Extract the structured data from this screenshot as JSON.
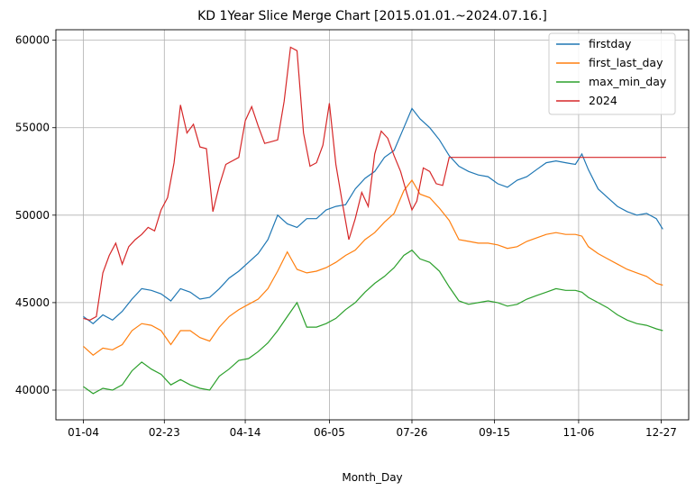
{
  "chart_data": {
    "type": "line",
    "title": "KD 1Year Slice Merge Chart [2015.01.01.~2024.07.16.]",
    "xlabel": "Month_Day",
    "ylabel": "",
    "x_ticks": [
      {
        "label": "01-04",
        "x": 0
      },
      {
        "label": "02-23",
        "x": 50
      },
      {
        "label": "04-14",
        "x": 100
      },
      {
        "label": "06-05",
        "x": 152
      },
      {
        "label": "07-26",
        "x": 203
      },
      {
        "label": "09-15",
        "x": 254
      },
      {
        "label": "11-06",
        "x": 306
      },
      {
        "label": "12-27",
        "x": 357
      }
    ],
    "xlim": [
      -17,
      374
    ],
    "ylim": [
      38300,
      60600
    ],
    "y_ticks": [
      40000,
      45000,
      50000,
      55000,
      60000
    ],
    "grid": true,
    "legend_position": "top-right",
    "series": [
      {
        "name": "firstday",
        "color": "#1f77b4",
        "points": [
          [
            0,
            44200
          ],
          [
            6,
            43800
          ],
          [
            12,
            44300
          ],
          [
            18,
            44000
          ],
          [
            24,
            44500
          ],
          [
            30,
            45200
          ],
          [
            36,
            45800
          ],
          [
            42,
            45700
          ],
          [
            48,
            45500
          ],
          [
            54,
            45100
          ],
          [
            60,
            45800
          ],
          [
            66,
            45600
          ],
          [
            72,
            45200
          ],
          [
            78,
            45300
          ],
          [
            84,
            45800
          ],
          [
            90,
            46400
          ],
          [
            96,
            46800
          ],
          [
            102,
            47300
          ],
          [
            108,
            47800
          ],
          [
            114,
            48600
          ],
          [
            120,
            50000
          ],
          [
            126,
            49500
          ],
          [
            132,
            49300
          ],
          [
            138,
            49800
          ],
          [
            144,
            49800
          ],
          [
            150,
            50300
          ],
          [
            156,
            50500
          ],
          [
            162,
            50600
          ],
          [
            168,
            51500
          ],
          [
            174,
            52100
          ],
          [
            180,
            52500
          ],
          [
            186,
            53300
          ],
          [
            192,
            53700
          ],
          [
            198,
            55000
          ],
          [
            203,
            56100
          ],
          [
            208,
            55500
          ],
          [
            214,
            55000
          ],
          [
            220,
            54300
          ],
          [
            226,
            53400
          ],
          [
            232,
            52800
          ],
          [
            238,
            52500
          ],
          [
            244,
            52300
          ],
          [
            250,
            52200
          ],
          [
            256,
            51800
          ],
          [
            262,
            51600
          ],
          [
            268,
            52000
          ],
          [
            274,
            52200
          ],
          [
            280,
            52600
          ],
          [
            286,
            53000
          ],
          [
            292,
            53100
          ],
          [
            298,
            53000
          ],
          [
            304,
            52900
          ],
          [
            308,
            53500
          ],
          [
            312,
            52600
          ],
          [
            318,
            51500
          ],
          [
            324,
            51000
          ],
          [
            330,
            50500
          ],
          [
            336,
            50200
          ],
          [
            342,
            50000
          ],
          [
            348,
            50100
          ],
          [
            354,
            49800
          ],
          [
            358,
            49200
          ]
        ]
      },
      {
        "name": "first_last_day",
        "color": "#ff7f0e",
        "points": [
          [
            0,
            42500
          ],
          [
            6,
            42000
          ],
          [
            12,
            42400
          ],
          [
            18,
            42300
          ],
          [
            24,
            42600
          ],
          [
            30,
            43400
          ],
          [
            36,
            43800
          ],
          [
            42,
            43700
          ],
          [
            48,
            43400
          ],
          [
            54,
            42600
          ],
          [
            60,
            43400
          ],
          [
            66,
            43400
          ],
          [
            72,
            43000
          ],
          [
            78,
            42800
          ],
          [
            84,
            43600
          ],
          [
            90,
            44200
          ],
          [
            96,
            44600
          ],
          [
            102,
            44900
          ],
          [
            108,
            45200
          ],
          [
            114,
            45800
          ],
          [
            120,
            46800
          ],
          [
            126,
            47900
          ],
          [
            132,
            46900
          ],
          [
            138,
            46700
          ],
          [
            144,
            46800
          ],
          [
            150,
            47000
          ],
          [
            156,
            47300
          ],
          [
            162,
            47700
          ],
          [
            168,
            48000
          ],
          [
            174,
            48600
          ],
          [
            180,
            49000
          ],
          [
            186,
            49600
          ],
          [
            192,
            50100
          ],
          [
            198,
            51400
          ],
          [
            203,
            52000
          ],
          [
            208,
            51200
          ],
          [
            214,
            51000
          ],
          [
            220,
            50400
          ],
          [
            226,
            49700
          ],
          [
            232,
            48600
          ],
          [
            238,
            48500
          ],
          [
            244,
            48400
          ],
          [
            250,
            48400
          ],
          [
            256,
            48300
          ],
          [
            262,
            48100
          ],
          [
            268,
            48200
          ],
          [
            274,
            48500
          ],
          [
            280,
            48700
          ],
          [
            286,
            48900
          ],
          [
            292,
            49000
          ],
          [
            298,
            48900
          ],
          [
            304,
            48900
          ],
          [
            308,
            48800
          ],
          [
            312,
            48200
          ],
          [
            318,
            47800
          ],
          [
            324,
            47500
          ],
          [
            330,
            47200
          ],
          [
            336,
            46900
          ],
          [
            342,
            46700
          ],
          [
            348,
            46500
          ],
          [
            354,
            46100
          ],
          [
            358,
            46000
          ]
        ]
      },
      {
        "name": "max_min_day",
        "color": "#2ca02c",
        "points": [
          [
            0,
            40200
          ],
          [
            6,
            39800
          ],
          [
            12,
            40100
          ],
          [
            18,
            40000
          ],
          [
            24,
            40300
          ],
          [
            30,
            41100
          ],
          [
            36,
            41600
          ],
          [
            42,
            41200
          ],
          [
            48,
            40900
          ],
          [
            54,
            40300
          ],
          [
            60,
            40600
          ],
          [
            66,
            40300
          ],
          [
            72,
            40100
          ],
          [
            78,
            40000
          ],
          [
            84,
            40800
          ],
          [
            90,
            41200
          ],
          [
            96,
            41700
          ],
          [
            102,
            41800
          ],
          [
            108,
            42200
          ],
          [
            114,
            42700
          ],
          [
            120,
            43400
          ],
          [
            126,
            44200
          ],
          [
            132,
            45000
          ],
          [
            138,
            43600
          ],
          [
            144,
            43600
          ],
          [
            150,
            43800
          ],
          [
            156,
            44100
          ],
          [
            162,
            44600
          ],
          [
            168,
            45000
          ],
          [
            174,
            45600
          ],
          [
            180,
            46100
          ],
          [
            186,
            46500
          ],
          [
            192,
            47000
          ],
          [
            198,
            47700
          ],
          [
            203,
            48000
          ],
          [
            208,
            47500
          ],
          [
            214,
            47300
          ],
          [
            220,
            46800
          ],
          [
            226,
            45900
          ],
          [
            232,
            45100
          ],
          [
            238,
            44900
          ],
          [
            244,
            45000
          ],
          [
            250,
            45100
          ],
          [
            256,
            45000
          ],
          [
            262,
            44800
          ],
          [
            268,
            44900
          ],
          [
            274,
            45200
          ],
          [
            280,
            45400
          ],
          [
            286,
            45600
          ],
          [
            292,
            45800
          ],
          [
            298,
            45700
          ],
          [
            304,
            45700
          ],
          [
            308,
            45600
          ],
          [
            312,
            45300
          ],
          [
            318,
            45000
          ],
          [
            324,
            44700
          ],
          [
            330,
            44300
          ],
          [
            336,
            44000
          ],
          [
            342,
            43800
          ],
          [
            348,
            43700
          ],
          [
            354,
            43500
          ],
          [
            358,
            43400
          ]
        ]
      },
      {
        "name": "2024",
        "color": "#d62728",
        "points": [
          [
            0,
            44100
          ],
          [
            4,
            44000
          ],
          [
            8,
            44200
          ],
          [
            12,
            46700
          ],
          [
            16,
            47700
          ],
          [
            20,
            48400
          ],
          [
            24,
            47200
          ],
          [
            28,
            48200
          ],
          [
            32,
            48600
          ],
          [
            36,
            48900
          ],
          [
            40,
            49300
          ],
          [
            44,
            49100
          ],
          [
            48,
            50300
          ],
          [
            52,
            51000
          ],
          [
            56,
            53000
          ],
          [
            60,
            56300
          ],
          [
            64,
            54700
          ],
          [
            68,
            55200
          ],
          [
            72,
            53900
          ],
          [
            76,
            53800
          ],
          [
            80,
            50200
          ],
          [
            84,
            51700
          ],
          [
            88,
            52900
          ],
          [
            92,
            53100
          ],
          [
            96,
            53300
          ],
          [
            100,
            55400
          ],
          [
            104,
            56200
          ],
          [
            108,
            55100
          ],
          [
            112,
            54100
          ],
          [
            116,
            54200
          ],
          [
            120,
            54300
          ],
          [
            124,
            56500
          ],
          [
            128,
            59600
          ],
          [
            132,
            59400
          ],
          [
            136,
            54700
          ],
          [
            140,
            52800
          ],
          [
            144,
            53000
          ],
          [
            148,
            54000
          ],
          [
            152,
            56400
          ],
          [
            156,
            52900
          ],
          [
            160,
            50700
          ],
          [
            164,
            48600
          ],
          [
            168,
            49800
          ],
          [
            172,
            51300
          ],
          [
            176,
            50500
          ],
          [
            180,
            53500
          ],
          [
            184,
            54800
          ],
          [
            188,
            54400
          ],
          [
            192,
            53400
          ],
          [
            196,
            52500
          ],
          [
            200,
            51200
          ],
          [
            203,
            50300
          ],
          [
            206,
            50800
          ],
          [
            210,
            52700
          ],
          [
            214,
            52500
          ],
          [
            218,
            51800
          ],
          [
            222,
            51700
          ],
          [
            226,
            53300
          ],
          [
            360,
            53300
          ]
        ]
      }
    ]
  }
}
